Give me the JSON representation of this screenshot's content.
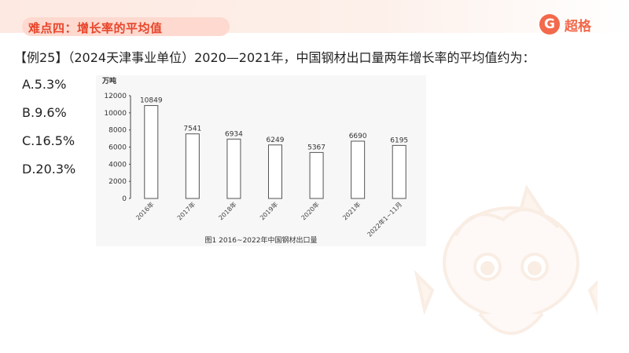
{
  "header": {
    "title": "难点四：增长率的平均值",
    "logo_glyph": "G",
    "logo_text": "超格",
    "accent": "#e8452b"
  },
  "question": {
    "text": "【例25】（2024天津事业单位）2020—2021年，中国钢材出口量两年增长率的平均值约为："
  },
  "options": [
    {
      "label": "A.5.3%"
    },
    {
      "label": "B.9.6%"
    },
    {
      "label": "C.16.5%"
    },
    {
      "label": "D.20.3%"
    }
  ],
  "chart_data": {
    "type": "bar",
    "title": "图1 2016~2022年中国钢材出口量",
    "ylabel": "万吨",
    "xlabel": "",
    "categories": [
      "2016年",
      "2017年",
      "2018年",
      "2019年",
      "2020年",
      "2021年",
      "2022年1~11月"
    ],
    "values": [
      10849,
      7541,
      6934,
      6249,
      5367,
      6690,
      6195
    ],
    "data_labels": [
      "10849",
      "7541",
      "6934",
      "6249",
      "5367",
      "6690",
      "6195"
    ],
    "yticks": [
      "0",
      "2000",
      "4000",
      "6000",
      "8000",
      "10000",
      "12000"
    ],
    "ylim": [
      0,
      12000
    ],
    "grid": false,
    "legend": "none",
    "bar_color": "#ffffff",
    "bar_stroke": "#555555"
  }
}
